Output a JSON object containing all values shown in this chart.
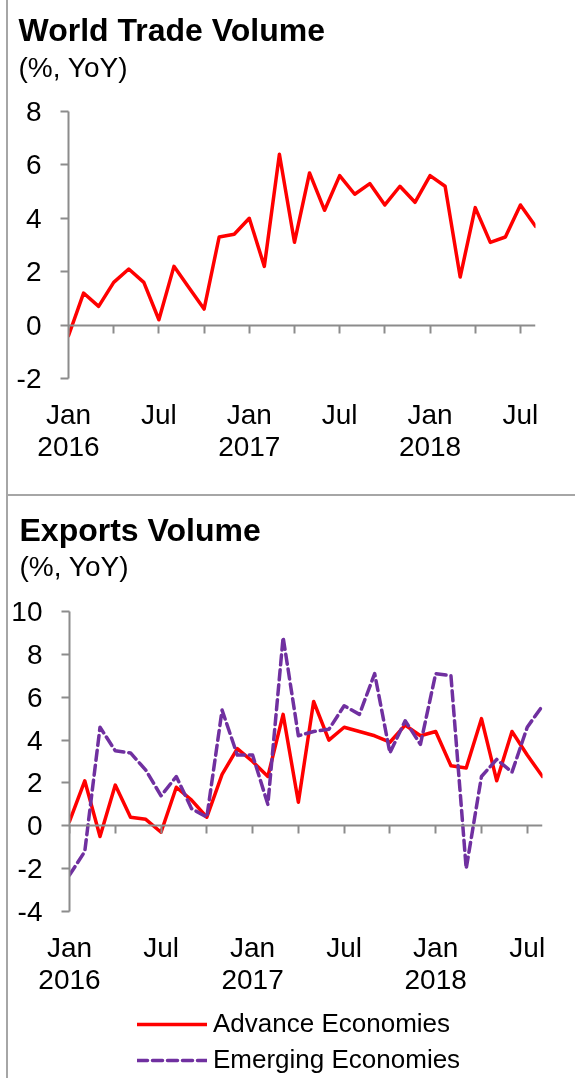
{
  "chart_data": [
    {
      "type": "line",
      "title": "World Trade Volume",
      "subtitle": "(%, YoY)",
      "x": [
        "2016-01",
        "2016-02",
        "2016-03",
        "2016-04",
        "2016-05",
        "2016-06",
        "2016-07",
        "2016-08",
        "2016-09",
        "2016-10",
        "2016-11",
        "2016-12",
        "2017-01",
        "2017-02",
        "2017-03",
        "2017-04",
        "2017-05",
        "2017-06",
        "2017-07",
        "2017-08",
        "2017-09",
        "2017-10",
        "2017-11",
        "2017-12",
        "2018-01",
        "2018-02",
        "2018-03",
        "2018-04",
        "2018-05",
        "2018-06",
        "2018-07",
        "2018-08"
      ],
      "series": [
        {
          "color": "#ff0000",
          "line_style": "solid",
          "values": [
            -0.4,
            1.2,
            0.7,
            1.6,
            2.1,
            1.6,
            0.2,
            2.2,
            1.4,
            0.6,
            3.3,
            3.4,
            4.0,
            2.2,
            6.4,
            3.1,
            5.7,
            4.3,
            5.6,
            4.9,
            5.3,
            4.5,
            5.2,
            4.6,
            5.6,
            5.2,
            1.8,
            4.4,
            3.1,
            3.3,
            4.5,
            3.7
          ]
        }
      ],
      "xlim": [
        "2016-01",
        "2018-08"
      ],
      "xticks": [
        {
          "value": "2016-01",
          "label": "Jan\n2016"
        },
        {
          "value": "2016-04",
          "label": null
        },
        {
          "value": "2016-07",
          "label": "Jul"
        },
        {
          "value": "2016-10",
          "label": null
        },
        {
          "value": "2017-01",
          "label": "Jan\n2017"
        },
        {
          "value": "2017-04",
          "label": null
        },
        {
          "value": "2017-07",
          "label": "Jul"
        },
        {
          "value": "2017-10",
          "label": null
        },
        {
          "value": "2018-01",
          "label": "Jan\n2018"
        },
        {
          "value": "2018-04",
          "label": null
        },
        {
          "value": "2018-07",
          "label": "Jul"
        }
      ],
      "ylim": [
        -2,
        8
      ],
      "yticks": [
        -2,
        0,
        2,
        4,
        6,
        8
      ]
    },
    {
      "type": "line",
      "title": "Exports Volume",
      "subtitle": "(%, YoY)",
      "x": [
        "2016-01",
        "2016-02",
        "2016-03",
        "2016-04",
        "2016-05",
        "2016-06",
        "2016-07",
        "2016-08",
        "2016-09",
        "2016-10",
        "2016-11",
        "2016-12",
        "2017-01",
        "2017-02",
        "2017-03",
        "2017-04",
        "2017-05",
        "2017-06",
        "2017-07",
        "2017-08",
        "2017-09",
        "2017-10",
        "2017-11",
        "2017-12",
        "2018-01",
        "2018-02",
        "2018-03",
        "2018-04",
        "2018-05",
        "2018-06",
        "2018-07",
        "2018-08"
      ],
      "series": [
        {
          "name": "Advance Economies",
          "color": "#ff0000",
          "line_style": "solid",
          "values": [
            0.2,
            2.1,
            -0.5,
            1.9,
            0.4,
            0.3,
            -0.3,
            1.8,
            1.2,
            0.4,
            2.4,
            3.6,
            3.0,
            2.3,
            5.2,
            1.1,
            5.8,
            4.0,
            4.6,
            4.4,
            4.2,
            3.9,
            4.7,
            4.2,
            4.4,
            2.8,
            2.7,
            5.0,
            2.1,
            4.4,
            3.3,
            2.3
          ]
        },
        {
          "name": "Emerging Economies",
          "color": "#7030a0",
          "line_style": "dashed",
          "values": [
            -2.3,
            -1.2,
            4.6,
            3.5,
            3.4,
            2.6,
            1.4,
            2.3,
            0.8,
            0.4,
            5.4,
            3.3,
            3.3,
            1.0,
            8.8,
            4.2,
            4.4,
            4.5,
            5.6,
            5.2,
            7.1,
            3.4,
            4.9,
            3.8,
            7.1,
            7.0,
            -2.0,
            2.3,
            3.1,
            2.5,
            4.6,
            5.6
          ]
        }
      ],
      "xlim": [
        "2016-01",
        "2018-08"
      ],
      "xticks": [
        {
          "value": "2016-01",
          "label": "Jan\n2016"
        },
        {
          "value": "2016-04",
          "label": null
        },
        {
          "value": "2016-07",
          "label": "Jul"
        },
        {
          "value": "2016-10",
          "label": null
        },
        {
          "value": "2017-01",
          "label": "Jan\n2017"
        },
        {
          "value": "2017-04",
          "label": null
        },
        {
          "value": "2017-07",
          "label": "Jul"
        },
        {
          "value": "2017-10",
          "label": null
        },
        {
          "value": "2018-01",
          "label": "Jan\n2018"
        },
        {
          "value": "2018-04",
          "label": null
        },
        {
          "value": "2018-07",
          "label": "Jul"
        }
      ],
      "ylim": [
        -4,
        10
      ],
      "yticks": [
        -4,
        -2,
        0,
        2,
        4,
        6,
        8,
        10
      ],
      "legend": "bottom"
    }
  ]
}
